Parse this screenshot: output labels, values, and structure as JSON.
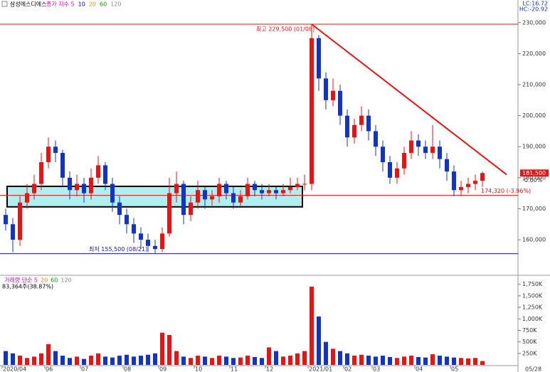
{
  "chart_data": [
    {
      "type": "candlestick",
      "title": "삼성에스디에스",
      "legend": [
        {
          "name": "종가 지수 5",
          "color": "#cc00cc"
        },
        {
          "name": "10",
          "color": "#0000cc"
        },
        {
          "name": "20",
          "color": "#e09000"
        },
        {
          "name": "60",
          "color": "#009900"
        },
        {
          "name": "120",
          "color": "#888888"
        }
      ],
      "corner_labels": [
        "LC:16.72",
        "HC:-20.92"
      ],
      "categories": [
        "2020/04",
        null,
        null,
        null,
        null,
        null,
        "06",
        null,
        null,
        null,
        null,
        "07",
        null,
        null,
        null,
        null,
        null,
        "08",
        null,
        null,
        null,
        null,
        "09",
        null,
        null,
        null,
        null,
        "10",
        null,
        null,
        null,
        null,
        "11",
        null,
        null,
        null,
        null,
        "12",
        null,
        null,
        null,
        null,
        null,
        "2021/01",
        null,
        null,
        null,
        null,
        "02",
        null,
        null,
        null,
        "03",
        null,
        null,
        null,
        null,
        null,
        "04",
        null,
        null,
        null,
        null,
        "05",
        null,
        null,
        null,
        null
      ],
      "last_date": "05/28",
      "up_color": "#ee1111",
      "down_color": "#1133cc",
      "open": [
        168000,
        165000,
        160000,
        172000,
        175000,
        178000,
        185000,
        190000,
        188000,
        180000,
        176000,
        178000,
        175000,
        180000,
        184000,
        178000,
        172000,
        168000,
        165000,
        162000,
        160000,
        158000,
        157000,
        162000,
        175000,
        178000,
        168000,
        172000,
        176000,
        173000,
        174000,
        178000,
        175000,
        172000,
        174000,
        178000,
        176000,
        175000,
        176000,
        175000,
        176000,
        177000,
        178000,
        178000,
        225000,
        212000,
        205000,
        208000,
        200000,
        193000,
        197000,
        200000,
        195000,
        190000,
        185000,
        180000,
        183000,
        188000,
        192000,
        190000,
        188000,
        190000,
        186000,
        182000,
        176000,
        177000,
        178000,
        179000
      ],
      "high": [
        170000,
        167000,
        174000,
        178000,
        181000,
        188000,
        193000,
        192000,
        189000,
        182000,
        181000,
        180000,
        183000,
        187000,
        185000,
        180000,
        174000,
        170000,
        167000,
        164000,
        162000,
        160000,
        164000,
        180000,
        182000,
        179000,
        174000,
        179000,
        177000,
        176000,
        180000,
        179000,
        177000,
        176000,
        180000,
        179000,
        178000,
        178000,
        177000,
        178000,
        180000,
        180000,
        181000,
        229500,
        226000,
        214000,
        212000,
        210000,
        202000,
        199000,
        203000,
        202000,
        197000,
        192000,
        187000,
        185000,
        190000,
        195000,
        194000,
        192000,
        197000,
        192000,
        188000,
        184000,
        179000,
        180000,
        181000,
        182000
      ],
      "low": [
        163000,
        156000,
        158000,
        170000,
        173000,
        176000,
        183000,
        185000,
        177000,
        173000,
        174000,
        172000,
        173000,
        178000,
        176000,
        169000,
        165000,
        162000,
        159000,
        157000,
        156000,
        155500,
        156000,
        161000,
        172000,
        165000,
        166000,
        170000,
        170000,
        171000,
        172000,
        173000,
        170000,
        171000,
        173000,
        174000,
        173000,
        174000,
        173000,
        174000,
        175000,
        176000,
        176000,
        176000,
        208000,
        202000,
        203000,
        197000,
        190000,
        191000,
        195000,
        192000,
        187000,
        182000,
        178000,
        178000,
        181000,
        186000,
        187000,
        186000,
        186000,
        183000,
        179000,
        174000,
        174000,
        175000,
        176000,
        177000
      ],
      "close": [
        165000,
        160000,
        172000,
        175000,
        178000,
        185000,
        190000,
        188000,
        180000,
        176000,
        178000,
        175000,
        180000,
        184000,
        178000,
        172000,
        168000,
        165000,
        162000,
        160000,
        158000,
        157000,
        162000,
        175000,
        178000,
        168000,
        172000,
        176000,
        173000,
        174000,
        178000,
        175000,
        172000,
        174000,
        178000,
        176000,
        175000,
        176000,
        175000,
        176000,
        177000,
        178000,
        178000,
        225000,
        212000,
        205000,
        208000,
        200000,
        193000,
        197000,
        200000,
        195000,
        190000,
        185000,
        180000,
        183000,
        188000,
        192000,
        190000,
        188000,
        190000,
        186000,
        182000,
        176000,
        177000,
        178000,
        179000,
        181500
      ],
      "ylim": [
        149000,
        235000
      ],
      "yticks": [
        {
          "value": 160000,
          "label": "160,000"
        },
        {
          "value": 170000,
          "label": "170,000"
        },
        {
          "value": 180000,
          "label": "180,000"
        },
        {
          "value": 190000,
          "label": "190,000"
        },
        {
          "value": 200000,
          "label": "200,000"
        },
        {
          "value": 210000,
          "label": "210,000"
        },
        {
          "value": 220000,
          "label": "220,000"
        },
        {
          "value": 230000,
          "label": "230,000"
        }
      ],
      "annotations": [
        {
          "text": "최고 229,500 (01/08)",
          "value": 229500,
          "color": "#ee1111"
        },
        {
          "text": "174,320 (-3.96%)",
          "value": 174320,
          "color": "#ee1111"
        },
        {
          "text": "최저 155,500 (08/21)",
          "value": 155500,
          "color": "#1111cc"
        }
      ],
      "trendline": [
        229500,
        181000
      ],
      "box_range": [
        170600,
        177200
      ],
      "current_price": {
        "value": 181500,
        "label": "181,500",
        "change": "-0.00%"
      }
    },
    {
      "type": "bar",
      "title": "거래량 단순 5",
      "legend": [
        {
          "name": "20",
          "color": "#e09000"
        },
        {
          "name": "60",
          "color": "#009900"
        },
        {
          "name": "120",
          "color": "#888888"
        }
      ],
      "last_label": "83,364주(38.87%)",
      "values": [
        300000,
        250000,
        200000,
        150000,
        180000,
        250000,
        450000,
        300000,
        200000,
        150000,
        180000,
        130000,
        200000,
        250000,
        180000,
        160000,
        200000,
        220000,
        180000,
        200000,
        220000,
        250000,
        700000,
        650000,
        300000,
        180000,
        150000,
        200000,
        180000,
        150000,
        200000,
        180000,
        150000,
        160000,
        200000,
        170000,
        150000,
        380000,
        300000,
        180000,
        200000,
        250000,
        300000,
        1700000,
        1050000,
        500000,
        350000,
        300000,
        250000,
        200000,
        220000,
        200000,
        180000,
        200000,
        170000,
        150000,
        180000,
        200000,
        170000,
        160000,
        230000,
        200000,
        180000,
        160000,
        150000,
        140000,
        150000,
        83364
      ],
      "ylim": [
        0,
        1900000
      ],
      "yticks": [
        {
          "value": 250000,
          "label": "250K"
        },
        {
          "value": 500000,
          "label": "500K"
        },
        {
          "value": 750000,
          "label": "750K"
        },
        {
          "value": 1000000,
          "label": "1,000K"
        },
        {
          "value": 1250000,
          "label": "1,250K"
        },
        {
          "value": 1500000,
          "label": "1,500K"
        },
        {
          "value": 1750000,
          "label": "1,750K"
        }
      ]
    }
  ]
}
